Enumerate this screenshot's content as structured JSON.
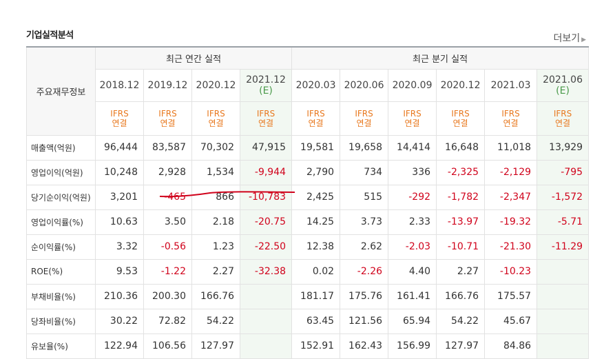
{
  "title": "기업실적분석",
  "more_label": "더보기",
  "table": {
    "row_header_label": "주요재무정보",
    "annual_group_label": "최근 연간 실적",
    "quarter_group_label": "최근 분기 실적",
    "columns": [
      {
        "date": "2018.12",
        "est": ""
      },
      {
        "date": "2019.12",
        "est": ""
      },
      {
        "date": "2020.12",
        "est": ""
      },
      {
        "date": "2021.12",
        "est": "(E)"
      },
      {
        "date": "2020.03",
        "est": ""
      },
      {
        "date": "2020.06",
        "est": ""
      },
      {
        "date": "2020.09",
        "est": ""
      },
      {
        "date": "2020.12",
        "est": ""
      },
      {
        "date": "2021.03",
        "est": ""
      },
      {
        "date": "2021.06",
        "est": "(E)"
      }
    ],
    "basis": {
      "line1": "IFRS",
      "line2": "연결"
    },
    "rows": [
      {
        "label": "매출액(억원)",
        "values": [
          "96,444",
          "83,587",
          "70,302",
          "47,915",
          "19,581",
          "19,658",
          "14,414",
          "16,648",
          "11,018",
          "13,929"
        ]
      },
      {
        "label": "영업이익(억원)",
        "values": [
          "10,248",
          "2,928",
          "1,534",
          "-9,944",
          "2,790",
          "734",
          "336",
          "-2,325",
          "-2,129",
          "-795"
        ]
      },
      {
        "label": "당기순이익(억원)",
        "values": [
          "3,201",
          "-465",
          "866",
          "-10,783",
          "2,425",
          "515",
          "-292",
          "-1,782",
          "-2,347",
          "-1,572"
        ]
      },
      {
        "label": "영업이익률(%)",
        "values": [
          "10.63",
          "3.50",
          "2.18",
          "-20.75",
          "14.25",
          "3.73",
          "2.33",
          "-13.97",
          "-19.32",
          "-5.71"
        ]
      },
      {
        "label": "순이익률(%)",
        "values": [
          "3.32",
          "-0.56",
          "1.23",
          "-22.50",
          "12.38",
          "2.62",
          "-2.03",
          "-10.71",
          "-21.30",
          "-11.29"
        ]
      },
      {
        "label": "ROE(%)",
        "values": [
          "9.53",
          "-1.22",
          "2.27",
          "-32.38",
          "0.02",
          "-2.26",
          "4.40",
          "2.27",
          "-10.23",
          ""
        ]
      },
      {
        "label": "부채비율(%)",
        "values": [
          "210.36",
          "200.30",
          "166.76",
          "",
          "181.17",
          "175.76",
          "161.41",
          "166.76",
          "175.57",
          ""
        ]
      },
      {
        "label": "당좌비율(%)",
        "values": [
          "30.22",
          "72.82",
          "54.22",
          "",
          "63.45",
          "121.56",
          "65.94",
          "54.22",
          "45.67",
          ""
        ]
      },
      {
        "label": "유보율(%)",
        "values": [
          "122.94",
          "106.56",
          "127.97",
          "",
          "152.91",
          "162.43",
          "156.99",
          "127.97",
          "84.86",
          ""
        ]
      }
    ]
  },
  "colors": {
    "negative": "#d0021b",
    "ifrs": "#e8781e",
    "estimate_bg": "#f2f8f2",
    "estimate_text": "#4a9a4a",
    "annotation_line": "#d0021b"
  }
}
